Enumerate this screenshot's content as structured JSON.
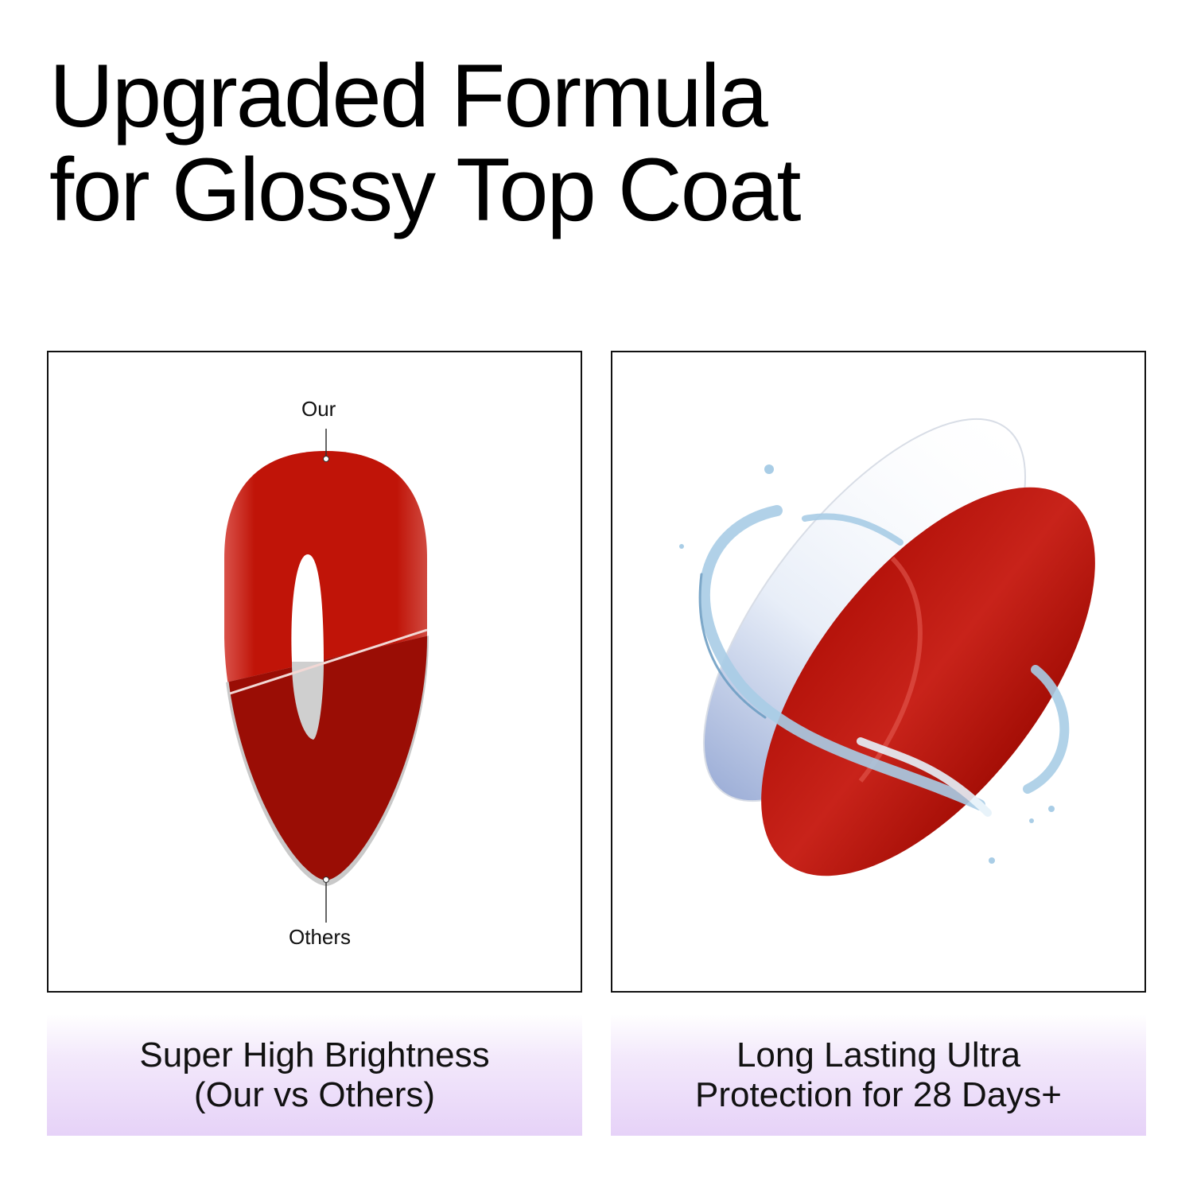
{
  "title": {
    "line1": "Upgraded Formula",
    "line2": "for Glossy Top Coat"
  },
  "left_panel": {
    "label_top": "Our",
    "label_bottom": "Others",
    "caption_line1": "Super High Brightness",
    "caption_line2": "(Our vs Others)"
  },
  "right_panel": {
    "caption_line1": "Long Lasting Ultra",
    "caption_line2": "Protection for 28 Days+"
  },
  "colors": {
    "nail_red": "#c01408",
    "nail_dark": "#9a0d05",
    "caption_bg": "#e6d2f8",
    "water": "#a9cde6"
  }
}
